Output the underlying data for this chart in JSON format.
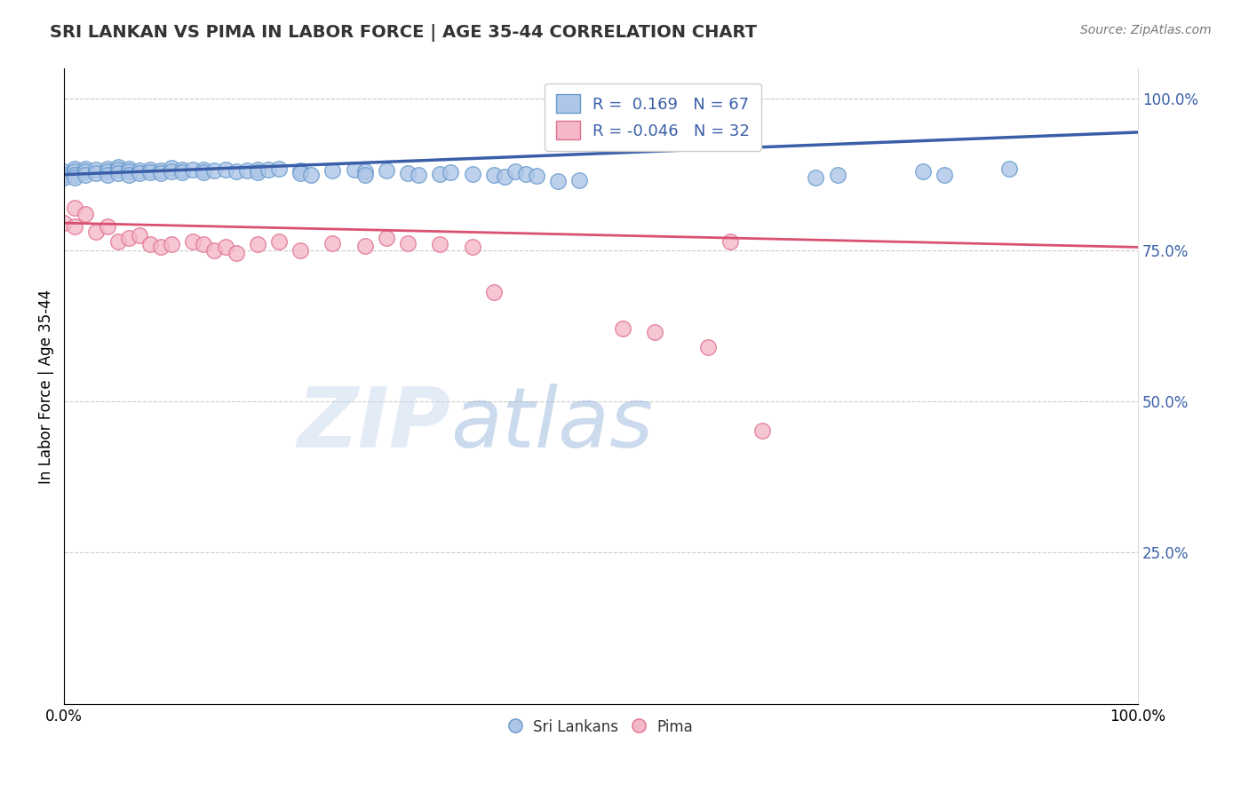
{
  "title": "SRI LANKAN VS PIMA IN LABOR FORCE | AGE 35-44 CORRELATION CHART",
  "source_text": "Source: ZipAtlas.com",
  "ylabel": "In Labor Force | Age 35-44",
  "xlim": [
    0.0,
    1.0
  ],
  "ylim": [
    0.0,
    1.0
  ],
  "xtick_labels": [
    "0.0%",
    "100.0%"
  ],
  "ytick_labels": [
    "25.0%",
    "50.0%",
    "75.0%",
    "100.0%"
  ],
  "ytick_positions": [
    0.25,
    0.5,
    0.75,
    1.0
  ],
  "sri_lankan_color": "#aec6e8",
  "sri_lankan_edge_color": "#6699cc",
  "pima_color": "#f4b8c8",
  "pima_edge_color": "#e07090",
  "sri_lankan_line_color": "#3a5fa8",
  "pima_line_color": "#d95070",
  "r_sri_lankan": 0.169,
  "n_sri_lankan": 67,
  "r_pima": -0.046,
  "n_pima": 32,
  "watermark_zip": "ZIP",
  "watermark_atlas": "atlas",
  "sri_lankan_points": [
    [
      0.0,
      0.88
    ],
    [
      0.0,
      0.875
    ],
    [
      0.0,
      0.87
    ],
    [
      0.01,
      0.885
    ],
    [
      0.01,
      0.88
    ],
    [
      0.01,
      0.875
    ],
    [
      0.01,
      0.87
    ],
    [
      0.02,
      0.885
    ],
    [
      0.02,
      0.88
    ],
    [
      0.02,
      0.875
    ],
    [
      0.03,
      0.883
    ],
    [
      0.03,
      0.878
    ],
    [
      0.04,
      0.885
    ],
    [
      0.04,
      0.88
    ],
    [
      0.04,
      0.875
    ],
    [
      0.05,
      0.888
    ],
    [
      0.05,
      0.883
    ],
    [
      0.05,
      0.878
    ],
    [
      0.06,
      0.885
    ],
    [
      0.06,
      0.88
    ],
    [
      0.06,
      0.875
    ],
    [
      0.07,
      0.882
    ],
    [
      0.07,
      0.877
    ],
    [
      0.08,
      0.884
    ],
    [
      0.08,
      0.879
    ],
    [
      0.09,
      0.882
    ],
    [
      0.09,
      0.877
    ],
    [
      0.1,
      0.886
    ],
    [
      0.1,
      0.881
    ],
    [
      0.11,
      0.884
    ],
    [
      0.11,
      0.879
    ],
    [
      0.12,
      0.883
    ],
    [
      0.13,
      0.884
    ],
    [
      0.13,
      0.879
    ],
    [
      0.14,
      0.882
    ],
    [
      0.15,
      0.883
    ],
    [
      0.16,
      0.881
    ],
    [
      0.17,
      0.882
    ],
    [
      0.18,
      0.884
    ],
    [
      0.18,
      0.879
    ],
    [
      0.19,
      0.883
    ],
    [
      0.2,
      0.885
    ],
    [
      0.22,
      0.882
    ],
    [
      0.22,
      0.877
    ],
    [
      0.23,
      0.875
    ],
    [
      0.25,
      0.882
    ],
    [
      0.27,
      0.883
    ],
    [
      0.28,
      0.88
    ],
    [
      0.28,
      0.875
    ],
    [
      0.3,
      0.882
    ],
    [
      0.32,
      0.878
    ],
    [
      0.33,
      0.874
    ],
    [
      0.35,
      0.876
    ],
    [
      0.36,
      0.879
    ],
    [
      0.38,
      0.876
    ],
    [
      0.4,
      0.875
    ],
    [
      0.41,
      0.872
    ],
    [
      0.42,
      0.88
    ],
    [
      0.43,
      0.876
    ],
    [
      0.44,
      0.873
    ],
    [
      0.46,
      0.864
    ],
    [
      0.48,
      0.866
    ],
    [
      0.7,
      0.87
    ],
    [
      0.72,
      0.875
    ],
    [
      0.8,
      0.88
    ],
    [
      0.82,
      0.875
    ],
    [
      0.88,
      0.885
    ]
  ],
  "pima_points": [
    [
      0.0,
      0.795
    ],
    [
      0.01,
      0.82
    ],
    [
      0.01,
      0.79
    ],
    [
      0.02,
      0.81
    ],
    [
      0.03,
      0.78
    ],
    [
      0.04,
      0.79
    ],
    [
      0.05,
      0.765
    ],
    [
      0.06,
      0.77
    ],
    [
      0.07,
      0.775
    ],
    [
      0.08,
      0.76
    ],
    [
      0.09,
      0.755
    ],
    [
      0.1,
      0.76
    ],
    [
      0.12,
      0.765
    ],
    [
      0.13,
      0.76
    ],
    [
      0.14,
      0.75
    ],
    [
      0.15,
      0.755
    ],
    [
      0.16,
      0.745
    ],
    [
      0.18,
      0.76
    ],
    [
      0.2,
      0.765
    ],
    [
      0.22,
      0.75
    ],
    [
      0.25,
      0.762
    ],
    [
      0.28,
      0.757
    ],
    [
      0.3,
      0.77
    ],
    [
      0.32,
      0.762
    ],
    [
      0.35,
      0.76
    ],
    [
      0.38,
      0.755
    ],
    [
      0.4,
      0.68
    ],
    [
      0.52,
      0.62
    ],
    [
      0.55,
      0.615
    ],
    [
      0.6,
      0.59
    ],
    [
      0.62,
      0.765
    ],
    [
      0.65,
      0.452
    ]
  ]
}
